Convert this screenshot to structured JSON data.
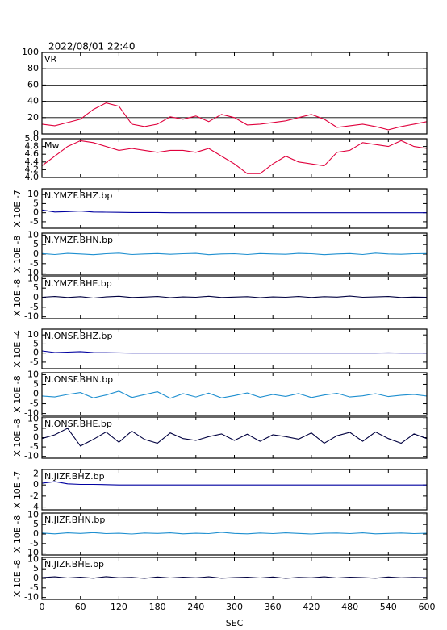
{
  "chart_data": [
    {
      "type": "line",
      "title": "2022/08/01 22:40",
      "label": "VR",
      "color": "#e0003c",
      "grid": true,
      "xlim": [
        0,
        600
      ],
      "ylim": [
        0,
        100
      ],
      "yticks": [
        0,
        20,
        40,
        60,
        80,
        100
      ],
      "x": [
        0,
        20,
        40,
        60,
        80,
        100,
        120,
        140,
        160,
        180,
        200,
        220,
        240,
        260,
        280,
        300,
        320,
        340,
        360,
        380,
        400,
        420,
        440,
        460,
        480,
        500,
        520,
        540,
        560,
        580,
        600
      ],
      "values": [
        12,
        10,
        14,
        18,
        30,
        38,
        34,
        12,
        9,
        12,
        21,
        18,
        22,
        15,
        24,
        20,
        11,
        12,
        14,
        16,
        20,
        24,
        18,
        8,
        10,
        12,
        9,
        5,
        9,
        12,
        15
      ]
    },
    {
      "type": "line",
      "label": "Mw",
      "color": "#e0003c",
      "xlim": [
        0,
        600
      ],
      "ylim": [
        4,
        5
      ],
      "yticks": [
        {
          "value": 4,
          "label": "4.0"
        },
        4.2,
        4.4,
        4.6,
        4.8,
        {
          "value": 5,
          "label": "5.0"
        }
      ],
      "x": [
        0,
        20,
        40,
        60,
        80,
        100,
        120,
        140,
        160,
        180,
        200,
        220,
        240,
        260,
        280,
        300,
        320,
        340,
        360,
        380,
        400,
        420,
        440,
        460,
        480,
        500,
        520,
        540,
        560,
        580,
        600
      ],
      "values": [
        4.3,
        4.55,
        4.8,
        4.95,
        4.9,
        4.8,
        4.7,
        4.75,
        4.7,
        4.65,
        4.7,
        4.7,
        4.65,
        4.75,
        4.55,
        4.35,
        4.1,
        4.1,
        4.35,
        4.55,
        4.4,
        4.35,
        4.3,
        4.65,
        4.7,
        4.9,
        4.85,
        4.8,
        4.95,
        4.8,
        4.75
      ]
    },
    {
      "type": "line",
      "label": "N.YMZF.BHZ.bp",
      "ylabel": "X 10E -7",
      "color": "#0000a0",
      "xlim": [
        0,
        600
      ],
      "ylim": [
        -8.6,
        13.2
      ],
      "yticks": [
        -5,
        0,
        5,
        10
      ],
      "x": [
        0,
        20,
        40,
        60,
        80,
        100,
        120,
        140,
        160,
        180,
        200,
        220,
        240,
        260,
        280,
        300,
        320,
        340,
        360,
        380,
        400,
        420,
        440,
        460,
        480,
        500,
        520,
        540,
        560,
        580,
        600
      ],
      "values": [
        1.5,
        0.4,
        0.6,
        0.9,
        0.4,
        0.3,
        0.2,
        0.1,
        0.1,
        0.1,
        0,
        0,
        0,
        0,
        0,
        0,
        0,
        0,
        0,
        0,
        0,
        0,
        0,
        0,
        0,
        0,
        0,
        0,
        0,
        0,
        0
      ]
    },
    {
      "type": "line",
      "label": "N.YMZF.BHN.bp",
      "ylabel": "X 10E -8",
      "color": "#1e8fd0",
      "xlim": [
        0,
        600
      ],
      "ylim": [
        -11,
        11
      ],
      "yticks": [
        -10,
        -5,
        0,
        5,
        10
      ],
      "x": [
        0,
        20,
        40,
        60,
        80,
        100,
        120,
        140,
        160,
        180,
        200,
        220,
        240,
        260,
        280,
        300,
        320,
        340,
        360,
        380,
        400,
        420,
        440,
        460,
        480,
        500,
        520,
        540,
        560,
        580,
        600
      ],
      "values": [
        0.3,
        -0.2,
        0.4,
        0.1,
        -0.3,
        0.2,
        0.5,
        -0.2,
        0.1,
        0.3,
        -0.1,
        0.2,
        0.4,
        -0.3,
        0.1,
        0.2,
        -0.2,
        0.3,
        0.1,
        -0.1,
        0.4,
        0.2,
        -0.3,
        0.1,
        0.3,
        -0.2,
        0.5,
        0.1,
        -0.1,
        0.2,
        0.3
      ]
    },
    {
      "type": "line",
      "label": "N.YMZF.BHE.bp",
      "ylabel": "X 10E -8",
      "color": "#000040",
      "xlim": [
        0,
        600
      ],
      "ylim": [
        -11,
        11
      ],
      "yticks": [
        -10,
        -5,
        0,
        5,
        10
      ],
      "x": [
        0,
        20,
        40,
        60,
        80,
        100,
        120,
        140,
        160,
        180,
        200,
        220,
        240,
        260,
        280,
        300,
        320,
        340,
        360,
        380,
        400,
        420,
        440,
        460,
        480,
        500,
        520,
        540,
        560,
        580,
        600
      ],
      "values": [
        0.2,
        0.6,
        0.1,
        0.5,
        -0.2,
        0.4,
        0.7,
        0.1,
        0.3,
        0.6,
        0,
        0.4,
        0.2,
        0.7,
        0.1,
        0.3,
        0.5,
        0,
        0.4,
        0.2,
        0.6,
        0.1,
        0.5,
        0.3,
        0.8,
        0.2,
        0.4,
        0.6,
        0.1,
        0.3,
        0.2
      ]
    },
    {
      "type": "line",
      "label": "N.ONSF.BHZ.bp",
      "ylabel": "X 10E -4",
      "color": "#0000a0",
      "xlim": [
        0,
        600
      ],
      "ylim": [
        -8.6,
        13.2
      ],
      "yticks": [
        -5,
        0,
        5,
        10
      ],
      "x": [
        0,
        20,
        40,
        60,
        80,
        100,
        120,
        140,
        160,
        180,
        200,
        220,
        240,
        260,
        280,
        300,
        320,
        340,
        360,
        380,
        400,
        420,
        440,
        460,
        480,
        500,
        520,
        540,
        560,
        580,
        600
      ],
      "values": [
        1.2,
        0.3,
        0.5,
        0.8,
        0.3,
        0.2,
        0.1,
        0,
        0,
        0,
        0,
        0,
        0,
        0,
        0,
        0,
        0,
        0,
        0,
        0,
        0,
        0,
        0,
        0,
        0,
        0,
        0,
        0.1,
        0,
        0,
        0
      ]
    },
    {
      "type": "line",
      "label": "N.ONSF.BHN.bp",
      "ylabel": "X 10E -8",
      "color": "#1e8fd0",
      "xlim": [
        0,
        600
      ],
      "ylim": [
        -11,
        11
      ],
      "yticks": [
        -10,
        -5,
        0,
        5,
        10
      ],
      "x": [
        0,
        20,
        40,
        60,
        80,
        100,
        120,
        140,
        160,
        180,
        200,
        220,
        240,
        260,
        280,
        300,
        320,
        340,
        360,
        380,
        400,
        420,
        440,
        460,
        480,
        500,
        520,
        540,
        560,
        580,
        600
      ],
      "values": [
        -1,
        -1.5,
        -0.2,
        0.8,
        -2,
        -0.5,
        1.5,
        -1.8,
        -0.3,
        1.2,
        -2.2,
        0.2,
        -1.5,
        0.5,
        -2,
        -0.8,
        0.6,
        -1.6,
        -0.2,
        -1.2,
        0.3,
        -1.8,
        -0.5,
        0.4,
        -1.5,
        -0.9,
        0.2,
        -1.3,
        -0.6,
        -0.2,
        -1
      ]
    },
    {
      "type": "line",
      "label": "N.ONSF.BHE.bp",
      "ylabel": "X 10E -8",
      "color": "#000040",
      "xlim": [
        0,
        600
      ],
      "ylim": [
        -11,
        11
      ],
      "yticks": [
        -10,
        -5,
        0,
        5,
        10
      ],
      "x": [
        0,
        20,
        40,
        60,
        80,
        100,
        120,
        140,
        160,
        180,
        200,
        220,
        240,
        260,
        280,
        300,
        320,
        340,
        360,
        380,
        400,
        420,
        440,
        460,
        480,
        500,
        520,
        540,
        560,
        580,
        600
      ],
      "values": [
        -0.5,
        1.5,
        5,
        -4.5,
        -1,
        3,
        -2.5,
        3.5,
        -1,
        -3,
        2.5,
        -0.5,
        -1.5,
        0.5,
        2,
        -1.5,
        1.8,
        -2,
        1.5,
        0.5,
        -0.8,
        2.5,
        -3,
        1,
        2.8,
        -2,
        3,
        -0.5,
        -3,
        2,
        -0.5
      ]
    },
    {
      "type": "line",
      "label": "N.JIZF.BHZ.bp",
      "ylabel": "X 10E -7",
      "color": "#0000a0",
      "xlim": [
        0,
        600
      ],
      "ylim": [
        -4.5,
        2.8
      ],
      "yticks": [
        -4,
        -2,
        0,
        2
      ],
      "x": [
        0,
        20,
        40,
        60,
        80,
        100,
        120,
        140,
        160,
        180,
        200,
        220,
        240,
        260,
        280,
        300,
        320,
        340,
        360,
        380,
        400,
        420,
        440,
        460,
        480,
        500,
        520,
        540,
        560,
        580,
        600
      ],
      "values": [
        0.3,
        0.6,
        0.2,
        0.1,
        0.1,
        0.05,
        0,
        0,
        0,
        0,
        0,
        0,
        0,
        0,
        0,
        0,
        0,
        0,
        0,
        0,
        0,
        0,
        0,
        0,
        0,
        0,
        0,
        0,
        0,
        0,
        0
      ]
    },
    {
      "type": "line",
      "label": "N.JIZF.BHN.bp",
      "ylabel": "X 10E -8",
      "color": "#1e8fd0",
      "xlim": [
        0,
        600
      ],
      "ylim": [
        -11,
        11
      ],
      "yticks": [
        -10,
        -5,
        0,
        5,
        10
      ],
      "x": [
        0,
        20,
        40,
        60,
        80,
        100,
        120,
        140,
        160,
        180,
        200,
        220,
        240,
        260,
        280,
        300,
        320,
        340,
        360,
        380,
        400,
        420,
        440,
        460,
        480,
        500,
        520,
        540,
        560,
        580,
        600
      ],
      "values": [
        0.5,
        0.1,
        0.6,
        0.3,
        0.7,
        0.2,
        0.4,
        0,
        0.5,
        0.3,
        0.6,
        0.1,
        0.4,
        0.2,
        0.9,
        0.3,
        0.1,
        0.5,
        0.2,
        0.6,
        0.3,
        0,
        0.4,
        0.5,
        0.2,
        0.6,
        0.1,
        0.3,
        0.5,
        0.2,
        0.4
      ]
    },
    {
      "type": "line",
      "label": "N.JIZF.BHE.bp",
      "ylabel": "X 10E -8",
      "color": "#000040",
      "xlim": [
        0,
        600
      ],
      "ylim": [
        -11,
        11
      ],
      "yticks": [
        -10,
        -5,
        0,
        5,
        10
      ],
      "xlabel": "SEC",
      "xticks": [
        0,
        60,
        120,
        180,
        240,
        300,
        360,
        420,
        480,
        540,
        600
      ],
      "x": [
        0,
        20,
        40,
        60,
        80,
        100,
        120,
        140,
        160,
        180,
        200,
        220,
        240,
        260,
        280,
        300,
        320,
        340,
        360,
        380,
        400,
        420,
        440,
        460,
        480,
        500,
        520,
        540,
        560,
        580,
        600
      ],
      "values": [
        0.4,
        0.8,
        0.2,
        0.6,
        0.1,
        0.9,
        0.3,
        0.5,
        0,
        0.7,
        0.2,
        0.6,
        0.3,
        0.8,
        0.1,
        0.4,
        0.6,
        0.2,
        0.7,
        0,
        0.5,
        0.3,
        0.8,
        0.2,
        0.6,
        0.4,
        0.1,
        0.7,
        0.3,
        0.5,
        0.4
      ]
    }
  ]
}
